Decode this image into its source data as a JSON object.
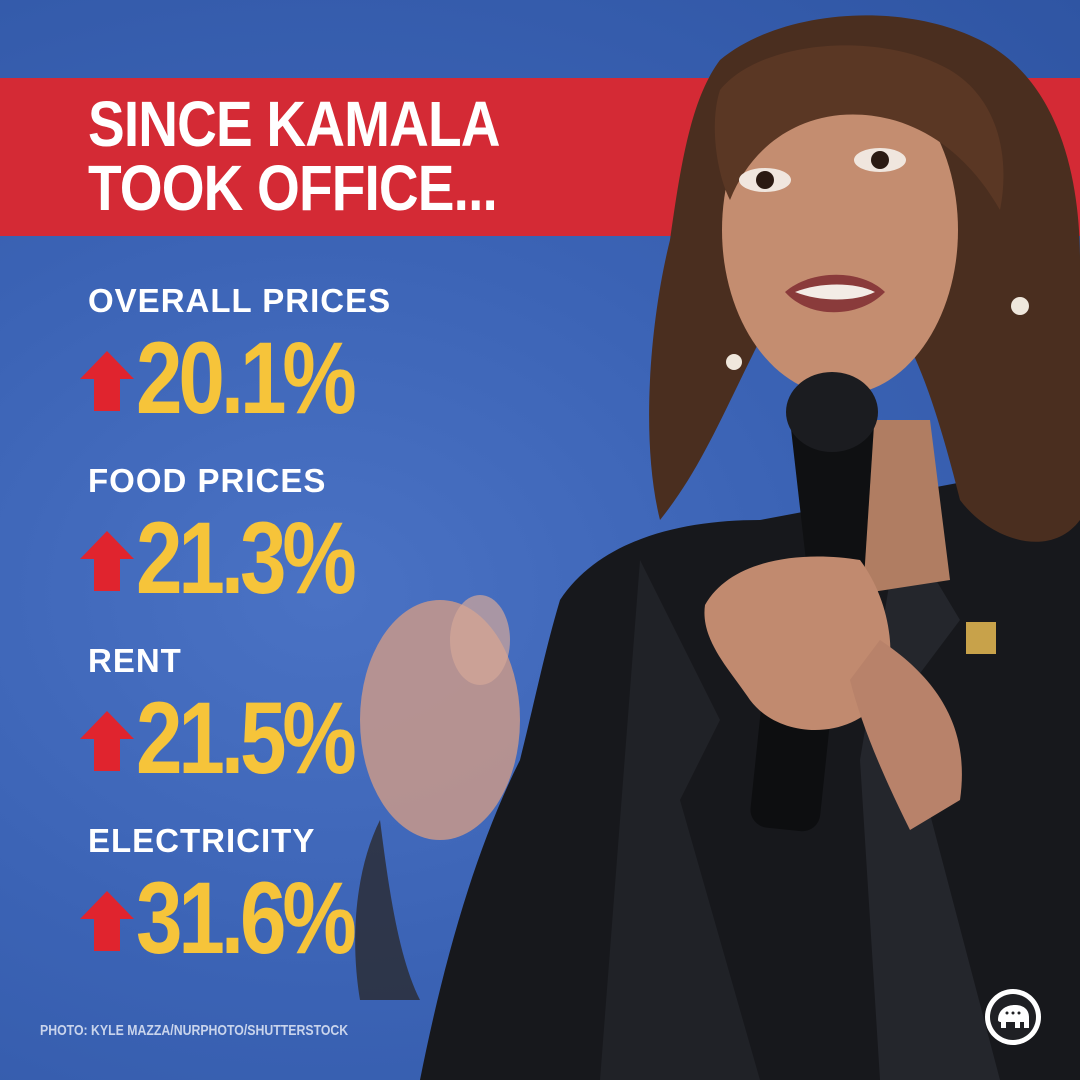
{
  "headline": {
    "line1": "SINCE KAMALA",
    "line2": "TOOK OFFICE..."
  },
  "stats": [
    {
      "label": "OVERALL PRICES",
      "value": "20.1%",
      "direction": "up"
    },
    {
      "label": "FOOD PRICES",
      "value": "21.3%",
      "direction": "up"
    },
    {
      "label": "RENT",
      "value": "21.5%",
      "direction": "up"
    },
    {
      "label": "ELECTRICITY",
      "value": "31.6%",
      "direction": "up"
    }
  ],
  "photo_credit": "PHOTO: KYLE MAZZA/NURPHOTO/SHUTTERSTOCK",
  "colors": {
    "background_blue": "#3b63b5",
    "banner_red": "#d42a35",
    "value_yellow": "#f6c43a",
    "arrow_red": "#e0242e",
    "text_white": "#ffffff"
  },
  "icons": {
    "stat_arrow": "arrow-up-icon",
    "logo": "gop-elephant-logo"
  }
}
